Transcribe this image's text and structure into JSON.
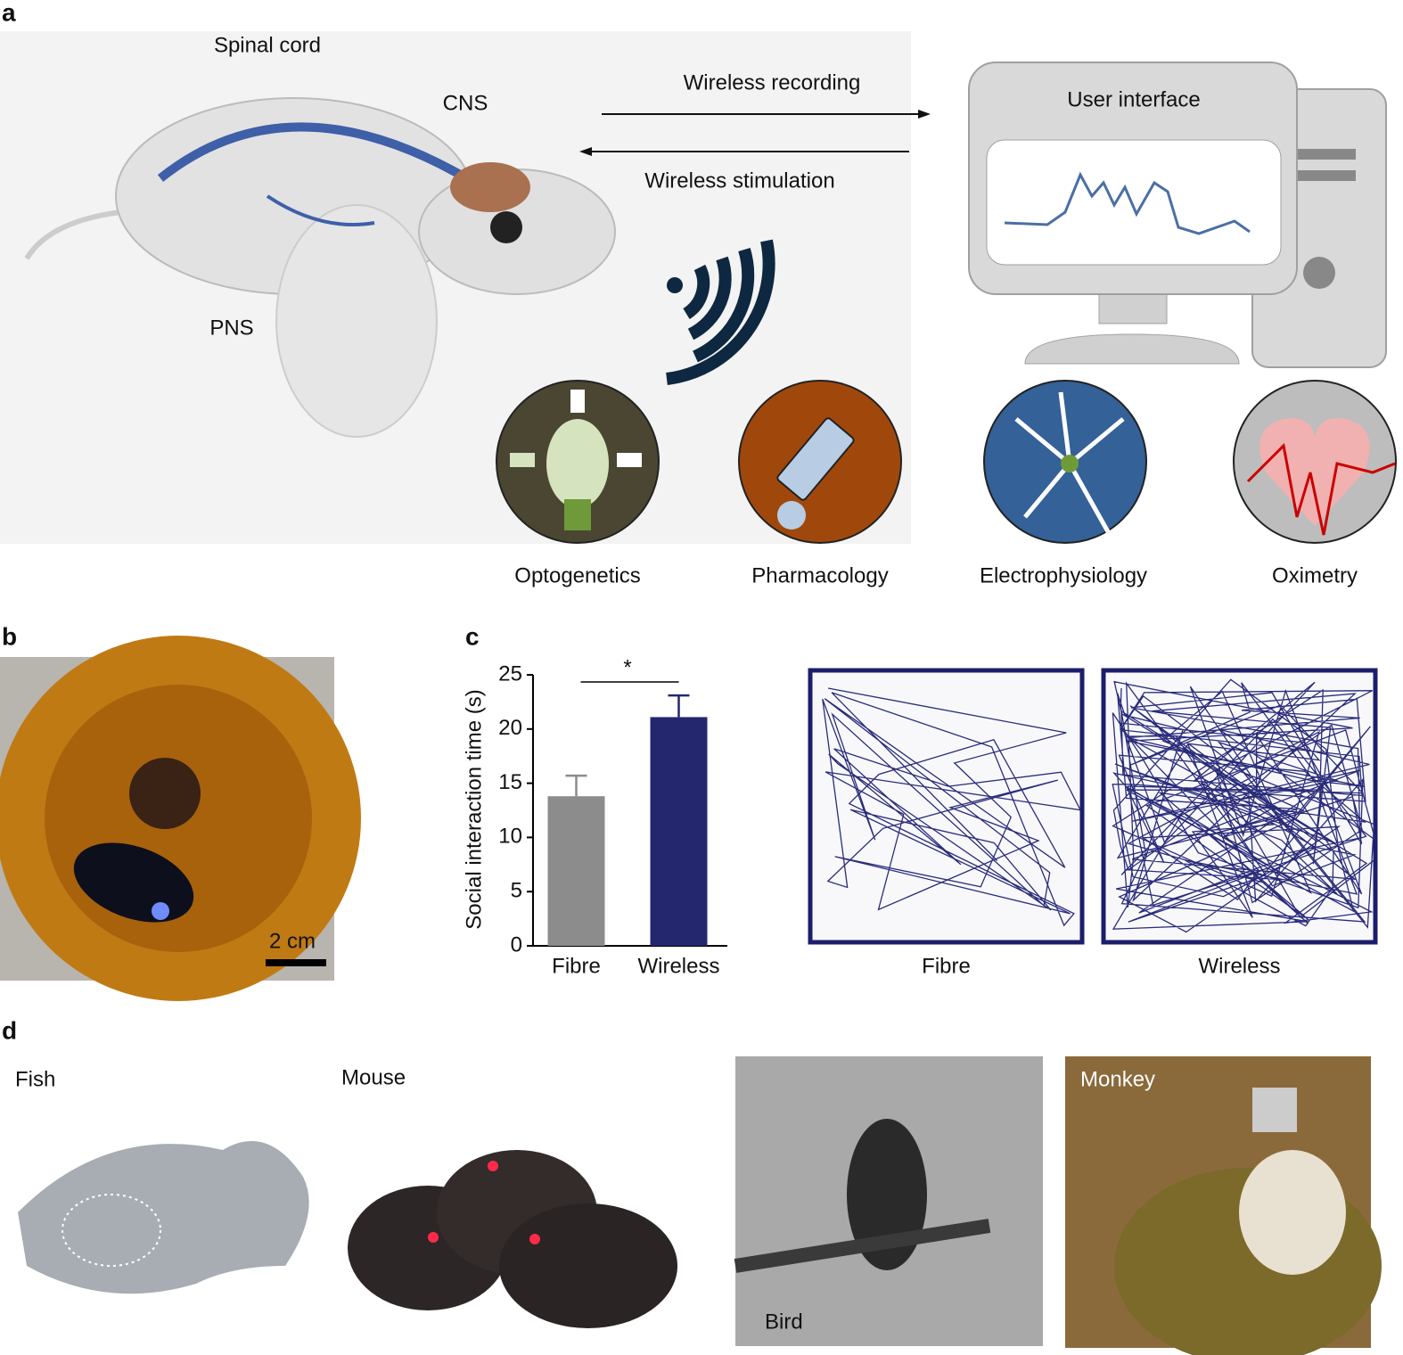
{
  "panel_labels": [
    "a",
    "b",
    "c",
    "d"
  ],
  "panel_a": {
    "anatomy": [
      "Spinal cord",
      "CNS",
      "PNS"
    ],
    "arrows": [
      "Wireless recording",
      "Wireless stimulation"
    ],
    "computer": "User interface",
    "modalities": [
      "Optogenetics",
      "Pharmacology",
      "Electrophysiology",
      "Oximetry"
    ]
  },
  "panel_b": {
    "scale_bar": "2 cm"
  },
  "chart_data": {
    "type": "bar",
    "categories": [
      "Fibre",
      "Wireless"
    ],
    "values": [
      13.8,
      21.1
    ],
    "errors": [
      1.9,
      2.0
    ],
    "colors": [
      "#8c8c8c",
      "#24276e"
    ],
    "ylabel": "Social interaction time (s)",
    "ylim": [
      0,
      25
    ],
    "yticks": [
      0,
      5,
      10,
      15,
      20,
      25
    ],
    "significance": "*"
  },
  "tracks": [
    "Fibre",
    "Wireless"
  ],
  "panel_d": [
    "Fish",
    "Mouse",
    "Bird",
    "Monkey"
  ]
}
